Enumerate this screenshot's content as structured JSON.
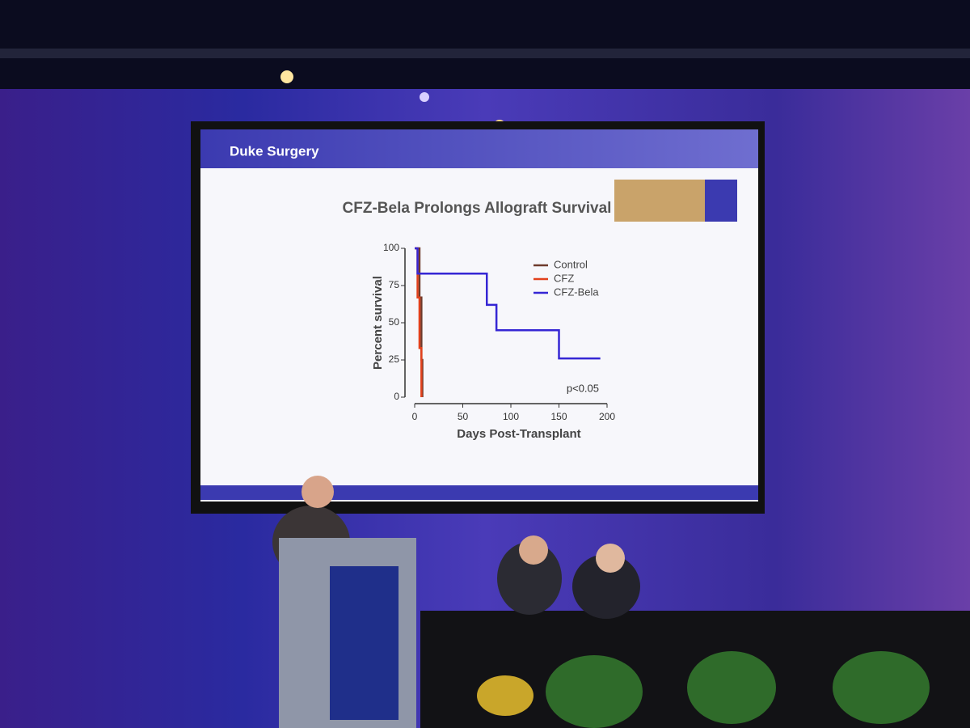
{
  "slide": {
    "header": "Duke Surgery"
  },
  "chart_data": {
    "type": "line",
    "step": true,
    "title": "CFZ-Bela Prolongs Allograft Survival",
    "x_label": "Days Post-Transplant",
    "y_label": "Percent survival",
    "annotation": "p<0.05",
    "xlim": [
      0,
      200
    ],
    "xticks": [
      0,
      50,
      100,
      150,
      200
    ],
    "ylim": [
      0,
      100
    ],
    "yticks": [
      0,
      25,
      50,
      75,
      100
    ],
    "legend": "top-right",
    "series": [
      {
        "name": "Control",
        "color": "#6e3b2c",
        "x": [
          0,
          5,
          7,
          8
        ],
        "values": [
          100,
          67,
          25,
          0
        ]
      },
      {
        "name": "CFZ",
        "color": "#e2411c",
        "x": [
          0,
          3,
          5,
          7
        ],
        "values": [
          100,
          67,
          33,
          0
        ]
      },
      {
        "name": "CFZ-Bela",
        "color": "#3526d4",
        "x": [
          0,
          3,
          75,
          85,
          150,
          193
        ],
        "values": [
          100,
          83,
          62,
          45,
          26,
          26
        ]
      }
    ]
  }
}
